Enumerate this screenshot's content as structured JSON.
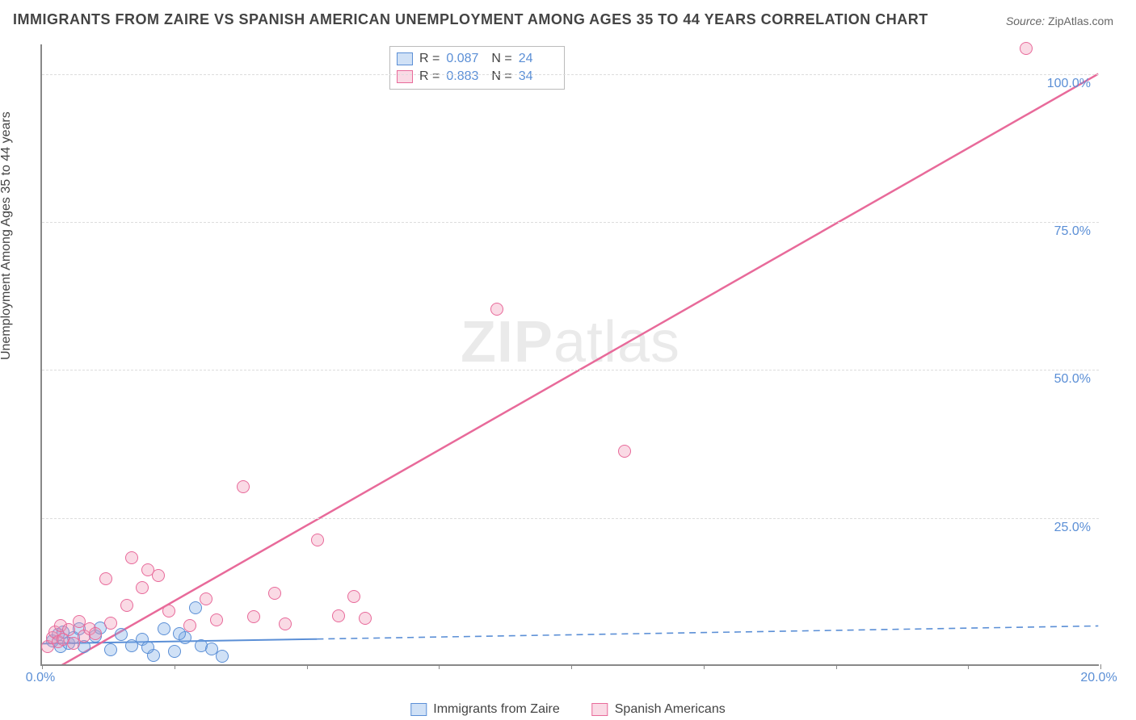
{
  "title": "IMMIGRANTS FROM ZAIRE VS SPANISH AMERICAN UNEMPLOYMENT AMONG AGES 35 TO 44 YEARS CORRELATION CHART",
  "source_label": "Source:",
  "source_value": "ZipAtlas.com",
  "y_axis_label": "Unemployment Among Ages 35 to 44 years",
  "watermark": {
    "bold": "ZIP",
    "light": "atlas"
  },
  "chart": {
    "type": "scatter",
    "xlim": [
      0,
      20
    ],
    "ylim": [
      0,
      105
    ],
    "x_ticks": [
      0,
      2.5,
      5,
      7.5,
      10,
      12.5,
      15,
      17.5,
      20
    ],
    "x_tick_labels": {
      "0": "0.0%",
      "20": "20.0%"
    },
    "y_ticks": [
      25,
      50,
      75,
      100
    ],
    "y_tick_labels": {
      "25": "25.0%",
      "50": "50.0%",
      "75": "75.0%",
      "100": "100.0%"
    },
    "grid_color": "#dddddd",
    "background_color": "#ffffff",
    "axis_color": "#888888",
    "tick_label_color": "#5b8fd6",
    "marker_radius": 8,
    "marker_border_width": 1.5,
    "series": [
      {
        "name": "Immigrants from Zaire",
        "fill": "rgba(120,170,230,0.35)",
        "stroke": "#5b8fd6",
        "r_value": "0.087",
        "n_value": "24",
        "trend": {
          "x1": 0,
          "y1": 3.5,
          "x2": 20,
          "y2": 6.5,
          "solid_until_x": 5.2,
          "width": 2
        },
        "points": [
          [
            0.2,
            4
          ],
          [
            0.3,
            5
          ],
          [
            0.35,
            3
          ],
          [
            0.4,
            5.5
          ],
          [
            0.5,
            3.5
          ],
          [
            0.6,
            4.5
          ],
          [
            0.7,
            6
          ],
          [
            0.8,
            3
          ],
          [
            1.0,
            4.8
          ],
          [
            1.1,
            6.2
          ],
          [
            1.3,
            2.5
          ],
          [
            1.5,
            5
          ],
          [
            1.7,
            3.2
          ],
          [
            1.9,
            4.2
          ],
          [
            2.1,
            1.5
          ],
          [
            2.3,
            6
          ],
          [
            2.5,
            2.2
          ],
          [
            2.7,
            4.5
          ],
          [
            2.9,
            9.5
          ],
          [
            3.0,
            3.2
          ],
          [
            3.2,
            2.6
          ],
          [
            3.4,
            1.3
          ],
          [
            2.0,
            2.8
          ],
          [
            2.6,
            5.2
          ]
        ]
      },
      {
        "name": "Spanish Americans",
        "fill": "rgba(240,150,180,0.35)",
        "stroke": "#e86a9a",
        "r_value": "0.883",
        "n_value": "34",
        "trend": {
          "x1": 0,
          "y1": -2,
          "x2": 20,
          "y2": 100,
          "solid_until_x": 20,
          "width": 2.5
        },
        "points": [
          [
            0.1,
            3
          ],
          [
            0.2,
            4.5
          ],
          [
            0.25,
            5.5
          ],
          [
            0.3,
            3.8
          ],
          [
            0.35,
            6.5
          ],
          [
            0.4,
            4.2
          ],
          [
            0.5,
            5.8
          ],
          [
            0.6,
            3.5
          ],
          [
            0.7,
            7.2
          ],
          [
            0.8,
            4.8
          ],
          [
            0.9,
            6
          ],
          [
            1.0,
            5.2
          ],
          [
            1.2,
            14.5
          ],
          [
            1.3,
            7
          ],
          [
            1.6,
            10
          ],
          [
            1.7,
            18
          ],
          [
            1.9,
            13
          ],
          [
            2.0,
            16
          ],
          [
            2.2,
            15
          ],
          [
            2.4,
            9
          ],
          [
            2.8,
            6.5
          ],
          [
            3.1,
            11
          ],
          [
            3.3,
            7.5
          ],
          [
            3.8,
            30
          ],
          [
            4.0,
            8
          ],
          [
            4.4,
            12
          ],
          [
            4.6,
            6.8
          ],
          [
            5.2,
            21
          ],
          [
            5.6,
            8.2
          ],
          [
            5.9,
            11.5
          ],
          [
            6.1,
            7.8
          ],
          [
            8.6,
            60
          ],
          [
            11.0,
            36
          ],
          [
            18.6,
            104
          ]
        ]
      }
    ]
  },
  "stats_legend_labels": {
    "R": "R =",
    "N": "N ="
  },
  "bottom_legend": [
    {
      "swatch_fill": "rgba(120,170,230,0.35)",
      "swatch_stroke": "#5b8fd6",
      "label": "Immigrants from Zaire"
    },
    {
      "swatch_fill": "rgba(240,150,180,0.35)",
      "swatch_stroke": "#e86a9a",
      "label": "Spanish Americans"
    }
  ]
}
